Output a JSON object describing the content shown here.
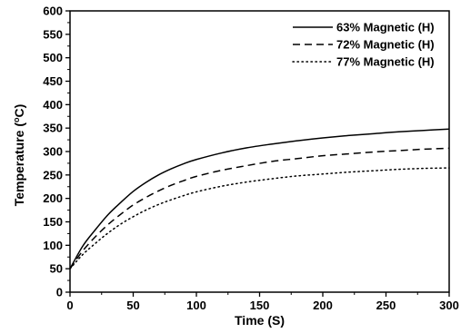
{
  "chart_data": {
    "type": "line",
    "xlabel": "Time (S)",
    "ylabel_main": "Temperature (",
    "ylabel_sup": "o",
    "ylabel_tail": "C)",
    "xlim": [
      0,
      300
    ],
    "ylim": [
      0,
      600
    ],
    "xticks": [
      0,
      50,
      100,
      150,
      200,
      250,
      300
    ],
    "yticks": [
      0,
      50,
      100,
      150,
      200,
      250,
      300,
      350,
      400,
      450,
      500,
      550,
      600
    ],
    "grid": false,
    "legend_position": "top-right",
    "series": [
      {
        "name": "63% Magnetic (H)",
        "line_style": "solid",
        "x": [
          0,
          10,
          20,
          30,
          40,
          50,
          60,
          70,
          80,
          90,
          100,
          120,
          140,
          160,
          180,
          200,
          220,
          240,
          260,
          280,
          300
        ],
        "y": [
          50,
          98,
          133,
          165,
          191,
          215,
          234,
          250,
          263,
          274,
          283,
          297,
          308,
          316,
          323,
          329,
          334,
          338,
          342,
          345,
          348
        ]
      },
      {
        "name": "72% Magnetic (H)",
        "line_style": "dashed",
        "x": [
          0,
          10,
          20,
          30,
          40,
          50,
          60,
          70,
          80,
          90,
          100,
          120,
          140,
          160,
          180,
          200,
          220,
          240,
          260,
          280,
          300
        ],
        "y": [
          50,
          88,
          118,
          144,
          166,
          186,
          202,
          216,
          228,
          238,
          247,
          260,
          270,
          279,
          285,
          291,
          295,
          299,
          302,
          305,
          307
        ]
      },
      {
        "name": "77% Magnetic (H)",
        "line_style": "dotted",
        "x": [
          0,
          10,
          20,
          30,
          40,
          50,
          60,
          70,
          80,
          90,
          100,
          120,
          140,
          160,
          180,
          200,
          220,
          240,
          260,
          280,
          300
        ],
        "y": [
          50,
          80,
          104,
          126,
          145,
          161,
          175,
          187,
          197,
          206,
          214,
          226,
          235,
          242,
          248,
          252,
          256,
          259,
          262,
          264,
          265
        ]
      }
    ]
  }
}
